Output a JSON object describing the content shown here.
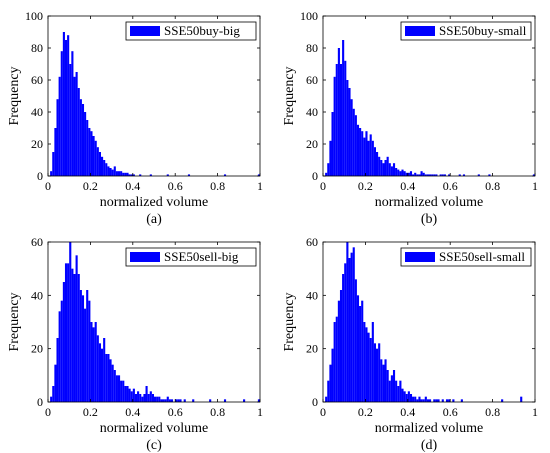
{
  "chart_data": [
    {
      "type": "bar",
      "panel_label": "(a)",
      "xlabel": "normalized volume",
      "ylabel": "Frequency",
      "xlim": [
        0,
        1
      ],
      "ylim": [
        0,
        100
      ],
      "xticks": [
        "0",
        "0.2",
        "0.4",
        "0.6",
        "0.8",
        "1"
      ],
      "yticks": [
        "0",
        "20",
        "40",
        "60",
        "80",
        "100"
      ],
      "legend": "SSE50buy-big",
      "legend_position": "top-right",
      "bar_color": "#0000ff",
      "bin_width": 0.01,
      "bin_start": 0.0,
      "values": [
        0,
        3,
        15,
        30,
        48,
        62,
        78,
        90,
        85,
        88,
        70,
        78,
        62,
        65,
        55,
        48,
        45,
        40,
        35,
        30,
        28,
        25,
        22,
        18,
        15,
        12,
        10,
        8,
        6,
        5,
        4,
        6,
        3,
        3,
        3,
        2,
        2,
        2,
        1,
        1,
        1,
        0,
        0,
        1,
        0,
        0,
        0,
        0,
        1,
        0,
        0,
        0,
        0,
        0,
        0,
        0,
        1,
        0,
        0,
        0,
        0,
        0,
        0,
        0,
        0,
        0,
        1,
        0,
        0,
        0,
        0,
        0,
        0,
        0,
        0,
        0,
        0,
        0,
        0,
        0,
        0,
        0,
        0,
        1,
        0,
        0,
        0,
        0,
        0,
        0,
        0,
        0,
        0,
        0,
        0,
        0,
        0,
        0,
        0,
        1
      ]
    },
    {
      "type": "bar",
      "panel_label": "(b)",
      "xlabel": "normalized volume",
      "ylabel": "Frequency",
      "xlim": [
        0,
        1
      ],
      "ylim": [
        0,
        100
      ],
      "xticks": [
        "0",
        "0.2",
        "0.4",
        "0.6",
        "0.8",
        "1"
      ],
      "yticks": [
        "0",
        "20",
        "40",
        "60",
        "80",
        "100"
      ],
      "legend": "SSE50buy-small",
      "legend_position": "top-right",
      "bar_color": "#0000ff",
      "bin_width": 0.01,
      "bin_start": 0.0,
      "values": [
        0,
        2,
        8,
        22,
        40,
        62,
        70,
        80,
        70,
        85,
        72,
        60,
        55,
        48,
        42,
        38,
        32,
        30,
        28,
        24,
        28,
        22,
        26,
        22,
        18,
        15,
        12,
        10,
        8,
        10,
        12,
        8,
        6,
        8,
        5,
        4,
        3,
        4,
        3,
        2,
        2,
        3,
        1,
        2,
        1,
        1,
        3,
        2,
        1,
        1,
        1,
        1,
        1,
        1,
        0,
        1,
        1,
        1,
        0,
        1,
        0,
        0,
        0,
        0,
        1,
        0,
        1,
        0,
        0,
        0,
        0,
        0,
        0,
        1,
        0,
        0,
        0,
        0,
        1,
        0,
        0,
        0,
        0,
        0,
        0,
        0,
        0,
        0,
        0,
        0,
        0,
        0,
        0,
        0,
        0,
        0,
        0,
        0,
        0,
        1
      ]
    },
    {
      "type": "bar",
      "panel_label": "(c)",
      "xlabel": "normalized volume",
      "ylabel": "Frequency",
      "xlim": [
        0,
        1
      ],
      "ylim": [
        0,
        60
      ],
      "xticks": [
        "0",
        "0.2",
        "0.4",
        "0.6",
        "0.8",
        "1"
      ],
      "yticks": [
        "0",
        "20",
        "40",
        "60"
      ],
      "legend": "SSE50sell-big",
      "legend_position": "top-right",
      "bar_color": "#0000ff",
      "bin_width": 0.01,
      "bin_start": 0.0,
      "values": [
        0,
        2,
        6,
        14,
        24,
        34,
        38,
        45,
        52,
        52,
        60,
        50,
        48,
        55,
        48,
        42,
        40,
        35,
        42,
        38,
        30,
        28,
        30,
        25,
        22,
        20,
        24,
        18,
        18,
        16,
        14,
        12,
        10,
        10,
        8,
        8,
        6,
        6,
        5,
        4,
        5,
        3,
        4,
        3,
        2,
        3,
        6,
        3,
        4,
        3,
        2,
        2,
        2,
        1,
        1,
        1,
        2,
        1,
        1,
        0,
        1,
        1,
        1,
        0,
        1,
        0,
        0,
        0,
        1,
        0,
        0,
        0,
        0,
        0,
        0,
        0,
        1,
        0,
        0,
        0,
        0,
        0,
        0,
        1,
        0,
        0,
        0,
        0,
        0,
        0,
        0,
        0,
        1,
        0,
        0,
        0,
        0,
        0,
        0,
        1
      ]
    },
    {
      "type": "bar",
      "panel_label": "(d)",
      "xlabel": "normalized volume",
      "ylabel": "Frequency",
      "xlim": [
        0,
        1
      ],
      "ylim": [
        0,
        60
      ],
      "xticks": [
        "0",
        "0.2",
        "0.4",
        "0.6",
        "0.8",
        "1"
      ],
      "yticks": [
        "0",
        "20",
        "40",
        "60"
      ],
      "legend": "SSE50sell-small",
      "legend_position": "top-right",
      "bar_color": "#0000ff",
      "bin_width": 0.01,
      "bin_start": 0.0,
      "values": [
        0,
        2,
        8,
        14,
        20,
        30,
        32,
        38,
        42,
        48,
        52,
        64,
        54,
        56,
        58,
        46,
        40,
        36,
        38,
        30,
        28,
        26,
        24,
        30,
        22,
        20,
        22,
        16,
        14,
        16,
        12,
        8,
        10,
        12,
        8,
        6,
        8,
        5,
        4,
        3,
        4,
        3,
        2,
        2,
        1,
        2,
        1,
        1,
        2,
        1,
        1,
        0,
        1,
        1,
        1,
        0,
        1,
        0,
        1,
        1,
        0,
        1,
        0,
        0,
        0,
        1,
        0,
        0,
        0,
        0,
        0,
        0,
        0,
        0,
        0,
        0,
        0,
        0,
        0,
        0,
        0,
        0,
        0,
        0,
        1,
        0,
        0,
        0,
        0,
        0,
        0,
        0,
        0,
        2,
        0,
        0,
        0,
        0,
        0,
        0
      ]
    }
  ]
}
